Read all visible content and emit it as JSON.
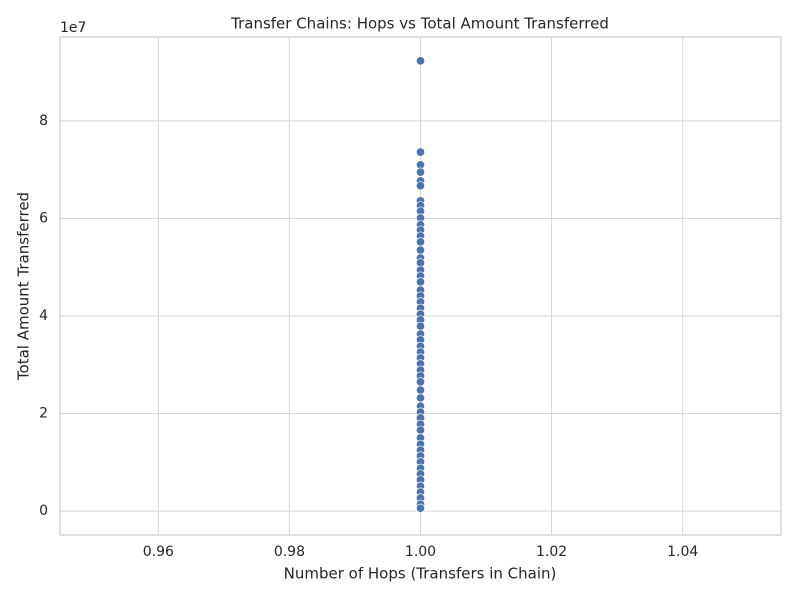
{
  "chart_data": {
    "type": "scatter",
    "title": "Transfer Chains: Hops vs Total Amount Transferred",
    "x_label": "Number of Hops (Transfers in Chain)",
    "y_label": "Total Amount Transferred",
    "y_offset_label": "1e7",
    "color": "#4c72b0",
    "grid": true,
    "xlim": [
      0.945,
      1.055
    ],
    "ylim": [
      -0.49,
      9.72
    ],
    "xticks": [
      0.96,
      0.98,
      {
        "value": 1,
        "label": "1.00"
      },
      1.02,
      1.04
    ],
    "yticks": [
      0,
      2,
      4,
      6,
      8
    ],
    "x": [
      1,
      1,
      1,
      1,
      1,
      1,
      1,
      1,
      1,
      1,
      1,
      1,
      1,
      1,
      1,
      1,
      1,
      1,
      1,
      1,
      1,
      1,
      1,
      1,
      1,
      1,
      1,
      1,
      1,
      1,
      1,
      1,
      1,
      1,
      1,
      1,
      1,
      1,
      1,
      1,
      1,
      1,
      1,
      1,
      1,
      1,
      1,
      1,
      1,
      1,
      1,
      1,
      1,
      1,
      1,
      1
    ],
    "values": [
      9.23,
      7.36,
      7.1,
      6.95,
      6.77,
      6.67,
      6.36,
      6.26,
      6.15,
      6.01,
      5.87,
      5.76,
      5.64,
      5.52,
      5.35,
      5.19,
      5.09,
      4.94,
      4.82,
      4.7,
      4.53,
      4.41,
      4.29,
      4.16,
      4.04,
      3.92,
      3.79,
      3.63,
      3.51,
      3.38,
      3.26,
      3.14,
      3.02,
      2.89,
      2.77,
      2.65,
      2.48,
      2.32,
      2.15,
      2.03,
      1.91,
      1.78,
      1.66,
      1.5,
      1.37,
      1.25,
      1.13,
      1.01,
      0.88,
      0.76,
      0.64,
      0.51,
      0.39,
      0.27,
      0.14,
      0.06
    ]
  }
}
